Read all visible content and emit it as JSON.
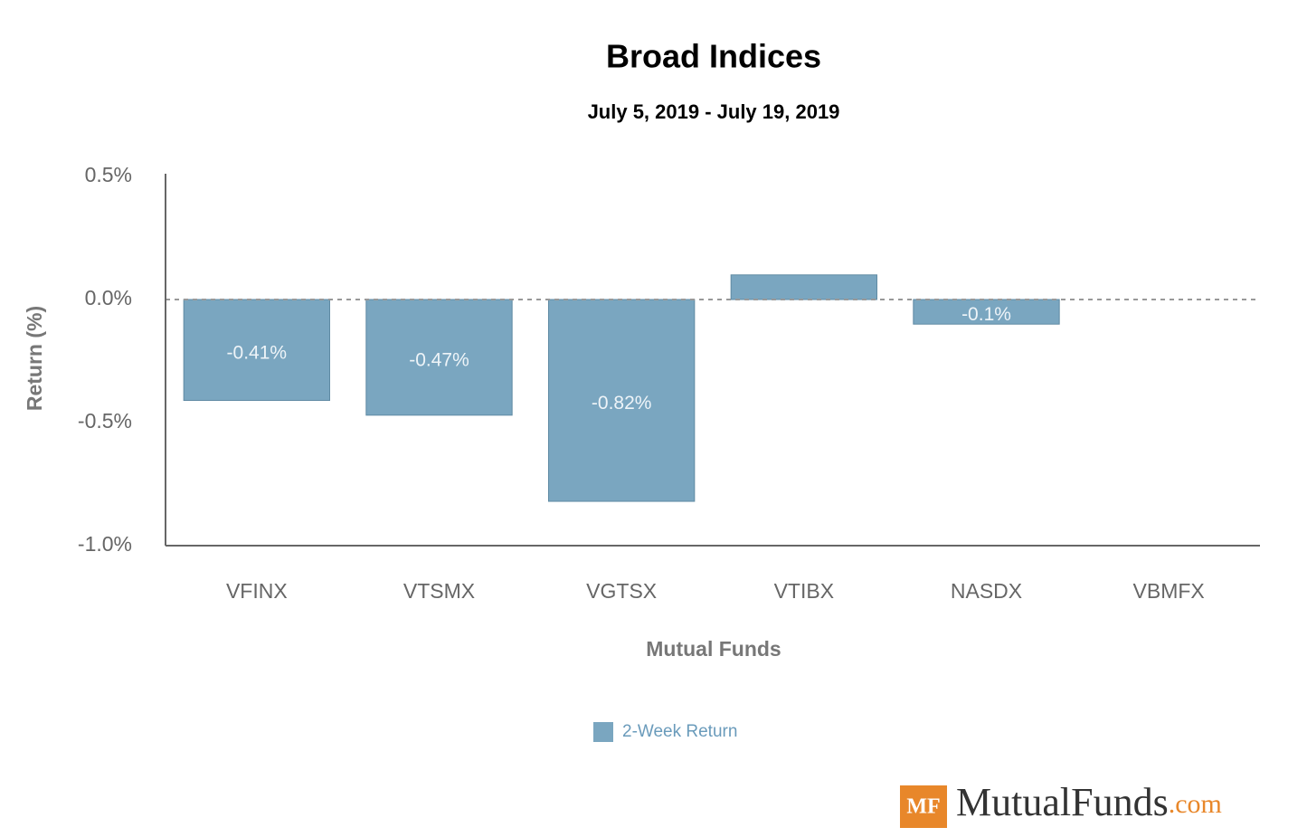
{
  "chart_data": {
    "type": "bar",
    "title": "Broad Indices",
    "subtitle": "July 5, 2019 - July 19, 2019",
    "x_label": "Mutual Funds",
    "y_label": "Return (%)",
    "categories": [
      "VFINX",
      "VTSMX",
      "VGTSX",
      "VTIBX",
      "NASDX",
      "VBMFX"
    ],
    "series": [
      {
        "name": "2-Week Return",
        "color": "#7aa6c0",
        "values": [
          -0.41,
          -0.47,
          -0.82,
          0.1,
          -0.1,
          0
        ],
        "value_labels": [
          "-0.41%",
          "-0.47%",
          "-0.82%",
          null,
          "-0.1%",
          null
        ]
      }
    ],
    "ylim": [
      -1.0,
      0.5
    ],
    "yticks": [
      {
        "value": -1.0,
        "label": "-1.0%"
      },
      {
        "value": -0.5,
        "label": "-0.5%"
      },
      {
        "value": 0,
        "label": "0.0%"
      },
      {
        "value": 0.5,
        "label": "0.5%"
      }
    ],
    "legend": "bottom"
  },
  "logo": {
    "badge": "MF",
    "name": "MutualFunds",
    "suffix": ".com"
  }
}
